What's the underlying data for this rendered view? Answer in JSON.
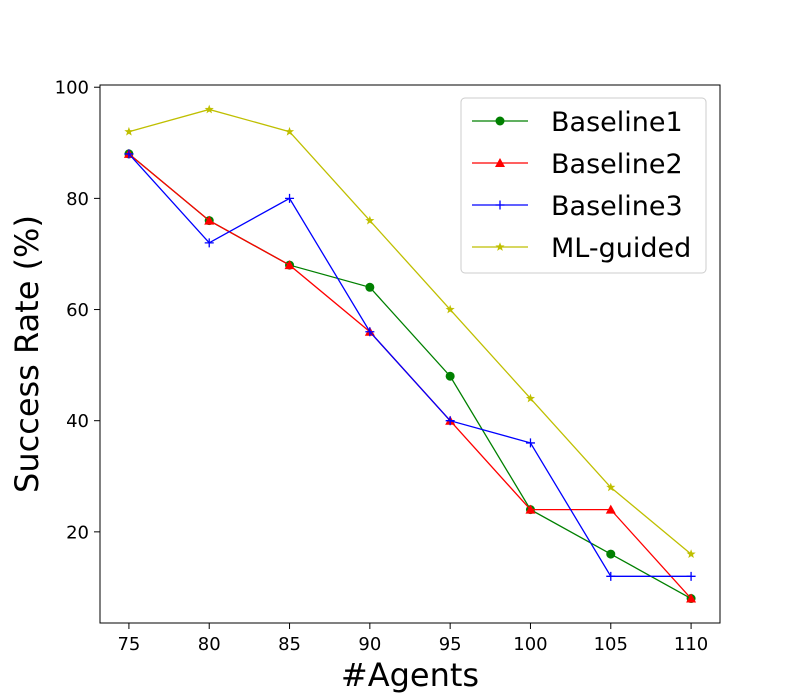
{
  "chart_data": {
    "type": "line",
    "title": "",
    "xlabel": "#Agents",
    "ylabel": "Success Rate (%)",
    "x": [
      75,
      80,
      85,
      90,
      95,
      100,
      105,
      110
    ],
    "xticks": [
      "75",
      "80",
      "85",
      "90",
      "95",
      "100",
      "105",
      "110"
    ],
    "yticks": [
      "20",
      "40",
      "60",
      "80",
      "100"
    ],
    "xlim": [
      73.2,
      111.8
    ],
    "ylim": [
      3.6,
      100.4
    ],
    "grid": false,
    "legend_position": "top-right",
    "series": [
      {
        "name": "Baseline1",
        "color": "#008000",
        "marker": "circle",
        "values": [
          88,
          76,
          68,
          64,
          48,
          24,
          16,
          8
        ]
      },
      {
        "name": "Baseline2",
        "color": "#ff0000",
        "marker": "triangle",
        "values": [
          88,
          76,
          68,
          56,
          40,
          24,
          24,
          8
        ]
      },
      {
        "name": "Baseline3",
        "color": "#0000ff",
        "marker": "plus",
        "values": [
          88,
          72,
          80,
          56,
          40,
          36,
          12,
          12
        ]
      },
      {
        "name": "ML-guided",
        "color": "#bfbf00",
        "marker": "star",
        "values": [
          92,
          96,
          92,
          76,
          60,
          44,
          28,
          16
        ]
      }
    ]
  }
}
